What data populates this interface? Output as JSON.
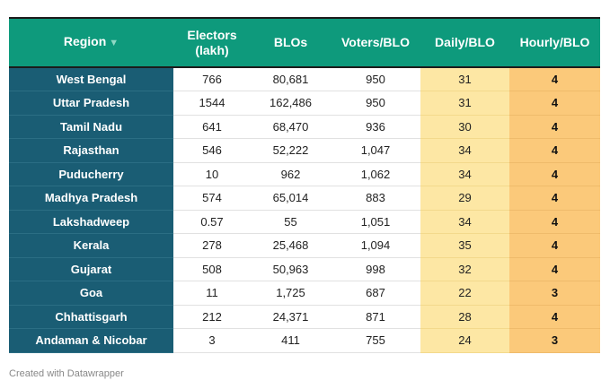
{
  "chart_data": {
    "type": "table",
    "columns": [
      "Region",
      "Electors (lakh)",
      "BLOs",
      "Voters/BLO",
      "Daily/BLO",
      "Hourly/BLO"
    ],
    "rows": [
      [
        "West Bengal",
        "766",
        "80,681",
        "950",
        "31",
        "4"
      ],
      [
        "Uttar Pradesh",
        "1544",
        "162,486",
        "950",
        "31",
        "4"
      ],
      [
        "Tamil Nadu",
        "641",
        "68,470",
        "936",
        "30",
        "4"
      ],
      [
        "Rajasthan",
        "546",
        "52,222",
        "1,047",
        "34",
        "4"
      ],
      [
        "Puducherry",
        "10",
        "962",
        "1,062",
        "34",
        "4"
      ],
      [
        "Madhya Pradesh",
        "574",
        "65,014",
        "883",
        "29",
        "4"
      ],
      [
        "Lakshadweep",
        "0.57",
        "55",
        "1,051",
        "34",
        "4"
      ],
      [
        "Kerala",
        "278",
        "25,468",
        "1,094",
        "35",
        "4"
      ],
      [
        "Gujarat",
        "508",
        "50,963",
        "998",
        "32",
        "4"
      ],
      [
        "Goa",
        "11",
        "1,725",
        "687",
        "22",
        "3"
      ],
      [
        "Chhattisgarh",
        "212",
        "24,371",
        "871",
        "28",
        "4"
      ],
      [
        "Andaman & Nicobar",
        "3",
        "411",
        "755",
        "24",
        "3"
      ]
    ]
  },
  "header": {
    "region": "Region",
    "sort_glyph": "▼",
    "electors_line1": "Electors",
    "electors_line2": "(lakh)",
    "blos": "BLOs",
    "voters_per_blo": "Voters/BLO",
    "daily_per_blo": "Daily/BLO",
    "hourly_per_blo": "Hourly/BLO"
  },
  "colors": {
    "header_bg": "#0e9a7c",
    "region_bg": "#1a5d74",
    "daily_bg": "#fde7a4",
    "hourly_bg": "#fbc97a"
  },
  "footer": {
    "credit": "Created with Datawrapper"
  }
}
